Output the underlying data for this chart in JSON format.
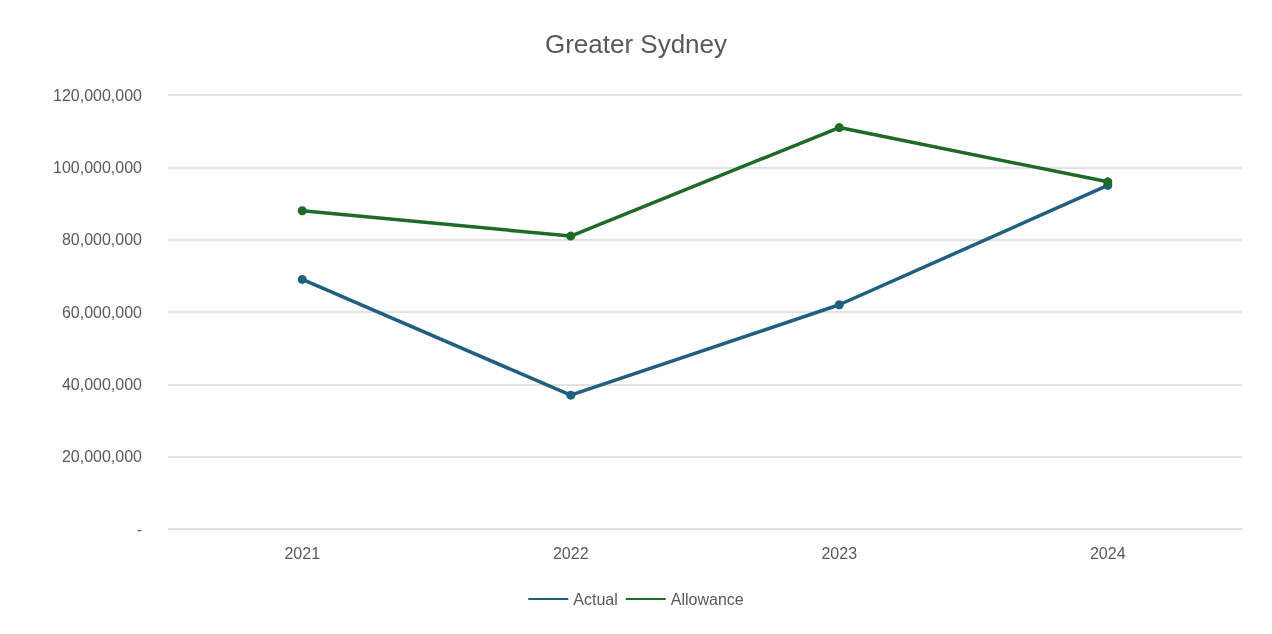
{
  "chart_data": {
    "type": "line",
    "title": "Greater Sydney",
    "categories": [
      "2021",
      "2022",
      "2023",
      "2024"
    ],
    "series": [
      {
        "name": "Actual",
        "color": "#215f80",
        "values": [
          69000000,
          37000000,
          62000000,
          95000000
        ]
      },
      {
        "name": "Allowance",
        "color": "#1e6b28",
        "values": [
          88000000,
          81000000,
          111000000,
          96000000
        ]
      }
    ],
    "ylim": [
      0,
      120000000
    ],
    "yticks": [
      {
        "value": 0,
        "label": "-"
      },
      {
        "value": 20000000,
        "label": "20,000,000"
      },
      {
        "value": 40000000,
        "label": "40,000,000"
      },
      {
        "value": 60000000,
        "label": "60,000,000"
      },
      {
        "value": 80000000,
        "label": "80,000,000"
      },
      {
        "value": 100000000,
        "label": "100,000,000"
      },
      {
        "value": 120000000,
        "label": "120,000,000"
      }
    ],
    "grid": "y",
    "legend": "bottom",
    "marker": "circle",
    "line_style": "solid"
  }
}
